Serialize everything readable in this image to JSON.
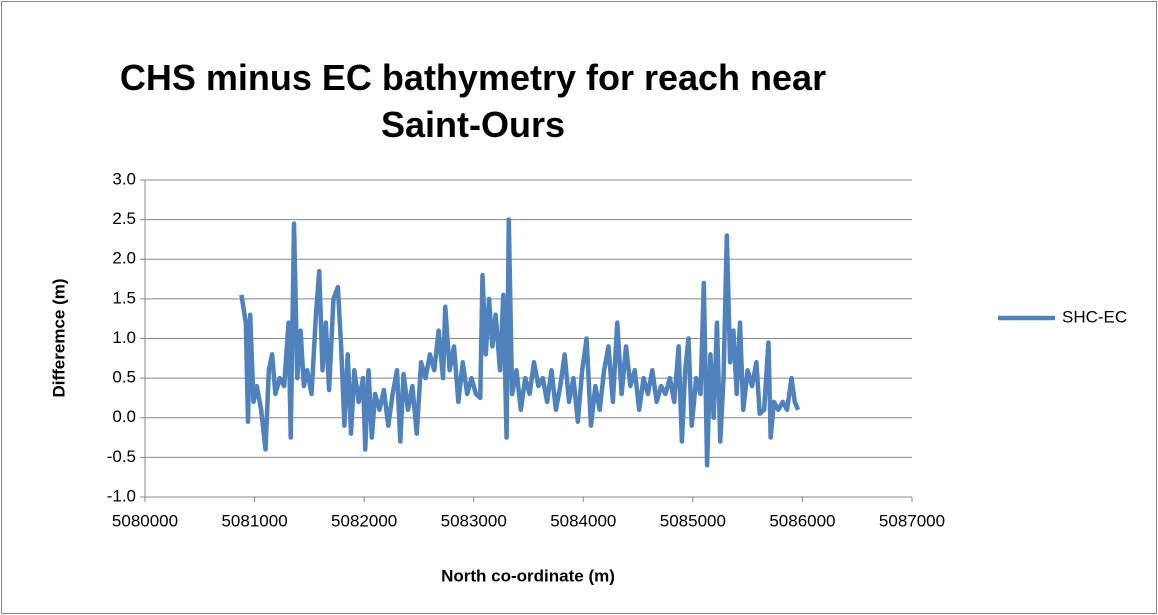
{
  "chart_data": {
    "type": "line",
    "title": "CHS minus EC bathymetry for reach near Saint-Ours",
    "xlabel": "North co-ordinate (m)",
    "ylabel": "Differemce (m)",
    "xlim": [
      5080000,
      5087000
    ],
    "xticks": [
      5080000,
      5081000,
      5082000,
      5083000,
      5084000,
      5085000,
      5086000,
      5087000
    ],
    "ylim": [
      -1,
      3
    ],
    "yticks": [
      {
        "value": -1,
        "label": "-1.0"
      },
      {
        "value": -0.5,
        "label": "-0.5"
      },
      {
        "value": 0,
        "label": "0.0"
      },
      {
        "value": 0.5,
        "label": "0.5"
      },
      {
        "value": 1,
        "label": "1.0"
      },
      {
        "value": 1.5,
        "label": "1.5"
      },
      {
        "value": 2,
        "label": "2.0"
      },
      {
        "value": 2.5,
        "label": "2.5"
      },
      {
        "value": 3,
        "label": "3.0"
      }
    ],
    "grid": true,
    "legend": "right",
    "x": [
      5080880,
      5080920,
      5080940,
      5080960,
      5080990,
      5081020,
      5081060,
      5081100,
      5081130,
      5081160,
      5081190,
      5081230,
      5081270,
      5081310,
      5081330,
      5081360,
      5081390,
      5081420,
      5081450,
      5081480,
      5081520,
      5081560,
      5081590,
      5081620,
      5081650,
      5081680,
      5081720,
      5081760,
      5081790,
      5081820,
      5081850,
      5081880,
      5081910,
      5081950,
      5081990,
      5082010,
      5082040,
      5082070,
      5082100,
      5082140,
      5082180,
      5082220,
      5082260,
      5082300,
      5082330,
      5082360,
      5082400,
      5082440,
      5082480,
      5082520,
      5082560,
      5082600,
      5082640,
      5082680,
      5082720,
      5082740,
      5082780,
      5082820,
      5082860,
      5082900,
      5082940,
      5082980,
      5083020,
      5083060,
      5083080,
      5083110,
      5083140,
      5083170,
      5083200,
      5083240,
      5083270,
      5083300,
      5083320,
      5083350,
      5083390,
      5083430,
      5083470,
      5083510,
      5083550,
      5083590,
      5083630,
      5083670,
      5083710,
      5083750,
      5083790,
      5083830,
      5083870,
      5083910,
      5083950,
      5083990,
      5084030,
      5084070,
      5084110,
      5084150,
      5084190,
      5084230,
      5084270,
      5084310,
      5084350,
      5084390,
      5084430,
      5084470,
      5084510,
      5084550,
      5084590,
      5084630,
      5084670,
      5084710,
      5084750,
      5084790,
      5084830,
      5084870,
      5084900,
      5084930,
      5084960,
      5084990,
      5085030,
      5085070,
      5085100,
      5085130,
      5085160,
      5085190,
      5085220,
      5085250,
      5085280,
      5085310,
      5085340,
      5085370,
      5085400,
      5085430,
      5085460,
      5085500,
      5085540,
      5085580,
      5085610,
      5085650,
      5085690,
      5085710,
      5085740,
      5085780,
      5085820,
      5085860,
      5085900,
      5085930,
      5085960
    ],
    "series": [
      {
        "name": "SHC-EC",
        "color": "#4f81bd",
        "values": [
          1.55,
          1.2,
          -0.05,
          1.3,
          0.2,
          0.4,
          0.1,
          -0.4,
          0.6,
          0.8,
          0.3,
          0.5,
          0.4,
          1.2,
          -0.25,
          2.45,
          0.5,
          1.1,
          0.4,
          0.6,
          0.3,
          1.3,
          1.85,
          0.6,
          1.2,
          0.35,
          1.5,
          1.65,
          0.9,
          -0.1,
          0.8,
          -0.2,
          0.6,
          0.2,
          0.5,
          -0.4,
          0.6,
          -0.25,
          0.3,
          0.1,
          0.35,
          -0.1,
          0.3,
          0.6,
          -0.3,
          0.55,
          0.1,
          0.4,
          -0.2,
          0.7,
          0.5,
          0.8,
          0.6,
          1.1,
          0.5,
          1.4,
          0.6,
          0.9,
          0.2,
          0.7,
          0.3,
          0.5,
          0.3,
          0.25,
          1.8,
          0.8,
          1.5,
          0.9,
          1.3,
          0.6,
          1.55,
          -0.25,
          2.5,
          0.3,
          0.6,
          0.1,
          0.5,
          0.3,
          0.7,
          0.4,
          0.5,
          0.2,
          0.6,
          0.1,
          0.4,
          0.8,
          0.2,
          0.5,
          -0.05,
          0.6,
          1.0,
          -0.1,
          0.4,
          0.1,
          0.6,
          0.9,
          0.2,
          1.2,
          0.3,
          0.9,
          0.4,
          0.6,
          0.1,
          0.5,
          0.3,
          0.6,
          0.2,
          0.4,
          0.3,
          0.5,
          0.2,
          0.9,
          -0.3,
          0.6,
          1.0,
          -0.1,
          0.5,
          0.3,
          1.7,
          -0.6,
          0.8,
          0.0,
          1.2,
          -0.3,
          0.5,
          2.3,
          0.7,
          1.1,
          0.3,
          1.2,
          0.1,
          0.6,
          0.4,
          0.7,
          0.05,
          0.1,
          0.95,
          -0.25,
          0.2,
          0.1,
          0.2,
          0.1,
          0.5,
          0.2,
          0.1
        ]
      }
    ]
  }
}
